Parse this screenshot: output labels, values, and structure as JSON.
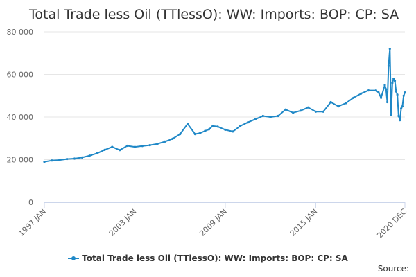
{
  "chart_data": {
    "type": "line",
    "title": "Total Trade less Oil (TTlessO): WW: Imports: BOP: CP: SA",
    "xlabel": "",
    "ylabel": "",
    "x_tick_labels": [
      "1997 JAN",
      "2003 JAN",
      "2009 JAN",
      "2015 JAN",
      "2020 DEC"
    ],
    "x_range": [
      "1997-01",
      "2020-12"
    ],
    "y_tick_labels": [
      "0",
      "20 000",
      "40 000",
      "60 000",
      "80 000"
    ],
    "y_ticks": [
      0,
      20000,
      40000,
      60000,
      80000
    ],
    "ylim": [
      0,
      80000
    ],
    "grid": "horizontal",
    "legend_position": "bottom",
    "series": [
      {
        "name": "Total Trade less Oil (TTlessO): WW: Imports: BOP: CP: SA",
        "color": "#1f88c7",
        "x": [
          "1997-01",
          "1997-07",
          "1998-01",
          "1998-07",
          "1999-01",
          "1999-07",
          "2000-01",
          "2000-07",
          "2001-01",
          "2001-07",
          "2002-01",
          "2002-07",
          "2003-01",
          "2003-07",
          "2004-01",
          "2004-07",
          "2005-01",
          "2005-07",
          "2006-01",
          "2006-07",
          "2007-01",
          "2007-05",
          "2007-09",
          "2007-12",
          "2008-03",
          "2008-07",
          "2009-01",
          "2009-07",
          "2010-01",
          "2010-07",
          "2011-01",
          "2011-07",
          "2012-01",
          "2012-07",
          "2013-01",
          "2013-07",
          "2014-01",
          "2014-07",
          "2015-01",
          "2015-07",
          "2016-01",
          "2016-07",
          "2017-01",
          "2017-07",
          "2018-01",
          "2018-07",
          "2019-01",
          "2019-03",
          "2019-05",
          "2019-08",
          "2019-09",
          "2019-10",
          "2019-11",
          "2019-12",
          "2020-01",
          "2020-02",
          "2020-03",
          "2020-04",
          "2020-05",
          "2020-06",
          "2020-07",
          "2020-08",
          "2020-09",
          "2020-10",
          "2020-11",
          "2020-12"
        ],
        "values": [
          19000,
          19600,
          19800,
          20300,
          20500,
          21000,
          21900,
          23000,
          24600,
          26000,
          24500,
          26500,
          26000,
          26400,
          26800,
          27400,
          28500,
          29800,
          32000,
          36800,
          32000,
          32500,
          33500,
          34200,
          35800,
          35500,
          34000,
          33200,
          35800,
          37500,
          39000,
          40500,
          40000,
          40500,
          43500,
          42000,
          43000,
          44500,
          42500,
          42500,
          47000,
          45000,
          46500,
          49000,
          51000,
          52500,
          52500,
          51500,
          49000,
          55000,
          53000,
          47000,
          64000,
          72000,
          41000,
          56000,
          58000,
          57000,
          52000,
          50500,
          40500,
          38500,
          44000,
          45000,
          50000,
          51500
        ]
      }
    ]
  },
  "source": {
    "label": "Source:"
  }
}
